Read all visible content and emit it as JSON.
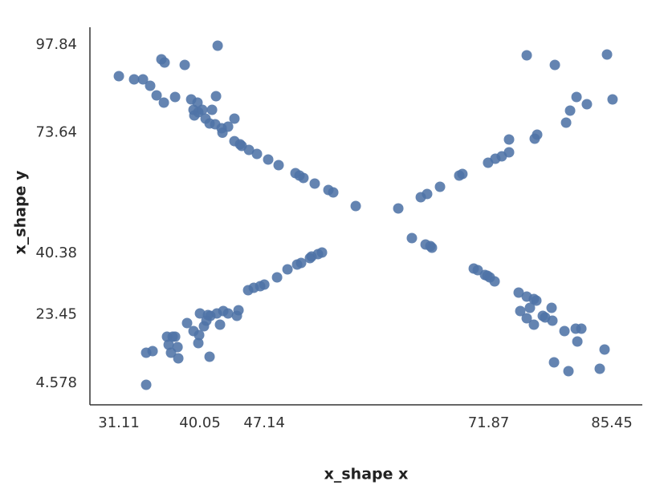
{
  "chart_data": {
    "type": "scatter",
    "x_label": "x_shape x",
    "y_label": "x_shape y",
    "color": "#4e73a6",
    "xlim": [
      27.92,
      88.81
    ],
    "ylim": [
      -1.39,
      102.7
    ],
    "xticks": [
      31.11,
      40.05,
      47.14,
      71.87,
      85.45
    ],
    "yticks": [
      4.578,
      23.45,
      40.38,
      73.64,
      97.84
    ],
    "series": [
      {
        "name": "x_shape",
        "x": [
          31.11,
          32.79,
          33.77,
          34.56,
          35.27,
          35.8,
          36.15,
          36.07,
          37.31,
          38.37,
          42.0,
          39.08,
          39.34,
          39.78,
          39.43,
          39.87,
          40.31,
          40.67,
          41.38,
          41.82,
          41.11,
          41.73,
          42.44,
          42.53,
          43.15,
          43.85,
          43.85,
          44.47,
          44.65,
          45.45,
          46.33,
          47.57,
          48.72,
          50.58,
          51.02,
          51.46,
          52.7,
          54.21,
          54.74,
          57.22,
          34.12,
          34.12,
          34.83,
          36.42,
          37.04,
          36.6,
          37.31,
          37.58,
          36.86,
          37.66,
          38.63,
          39.34,
          40.05,
          39.87,
          39.96,
          40.49,
          40.76,
          40.93,
          41.11,
          41.2,
          41.91,
          42.26,
          42.62,
          43.15,
          44.12,
          44.3,
          45.36,
          45.98,
          46.69,
          47.14,
          48.55,
          49.7,
          50.76,
          51.2,
          52.17,
          52.35,
          53.06,
          53.5,
          61.91,
          64.39,
          65.09,
          66.51,
          68.63,
          68.98,
          71.81,
          72.61,
          73.32,
          74.12,
          74.12,
          76.95,
          77.22,
          76.07,
          79.17,
          80.41,
          80.85,
          81.56,
          82.7,
          84.92,
          85.53,
          63.41,
          64.92,
          65.45,
          65.62,
          70.23,
          70.67,
          71.47,
          71.73,
          72.0,
          72.53,
          75.18,
          76.07,
          76.86,
          77.13,
          75.36,
          76.42,
          76.07,
          76.86,
          77.84,
          78.81,
          78.1,
          78.9,
          80.23,
          81.47,
          82.09,
          81.65,
          79.08,
          80.67,
          84.12,
          84.65
        ],
        "values": [
          89.22,
          88.34,
          88.34,
          86.57,
          83.92,
          93.86,
          92.98,
          81.93,
          83.47,
          92.31,
          97.62,
          82.81,
          79.94,
          81.93,
          78.39,
          79.28,
          79.94,
          77.51,
          79.94,
          83.7,
          76.18,
          75.96,
          74.86,
          73.63,
          75.3,
          77.51,
          71.3,
          70.44,
          69.99,
          68.89,
          67.78,
          66.24,
          64.69,
          62.48,
          61.82,
          61.15,
          59.61,
          57.84,
          57.18,
          53.42,
          4.14,
          12.98,
          13.42,
          17.4,
          17.4,
          15.19,
          17.4,
          14.52,
          12.98,
          11.43,
          21.15,
          18.94,
          23.8,
          15.63,
          17.84,
          20.27,
          21.82,
          23.36,
          11.87,
          23.14,
          23.8,
          20.71,
          24.47,
          23.8,
          23.14,
          24.69,
          30.21,
          30.88,
          31.32,
          31.76,
          33.75,
          35.96,
          37.29,
          37.73,
          39.05,
          39.5,
          40.16,
          40.6,
          52.76,
          55.85,
          56.73,
          58.72,
          61.82,
          62.26,
          65.35,
          66.46,
          67.12,
          68.23,
          71.76,
          71.98,
          73.09,
          94.97,
          92.31,
          76.4,
          79.72,
          83.47,
          81.49,
          95.19,
          82.81,
          44.58,
          42.81,
          42.37,
          41.93,
          36.18,
          35.74,
          34.41,
          34.19,
          33.75,
          32.64,
          29.55,
          28.44,
          27.78,
          27.34,
          24.47,
          25.35,
          22.48,
          20.71,
          23.14,
          25.35,
          22.7,
          21.82,
          18.94,
          19.61,
          19.61,
          16.07,
          10.32,
          7.89,
          8.56,
          13.86
        ]
      }
    ]
  }
}
